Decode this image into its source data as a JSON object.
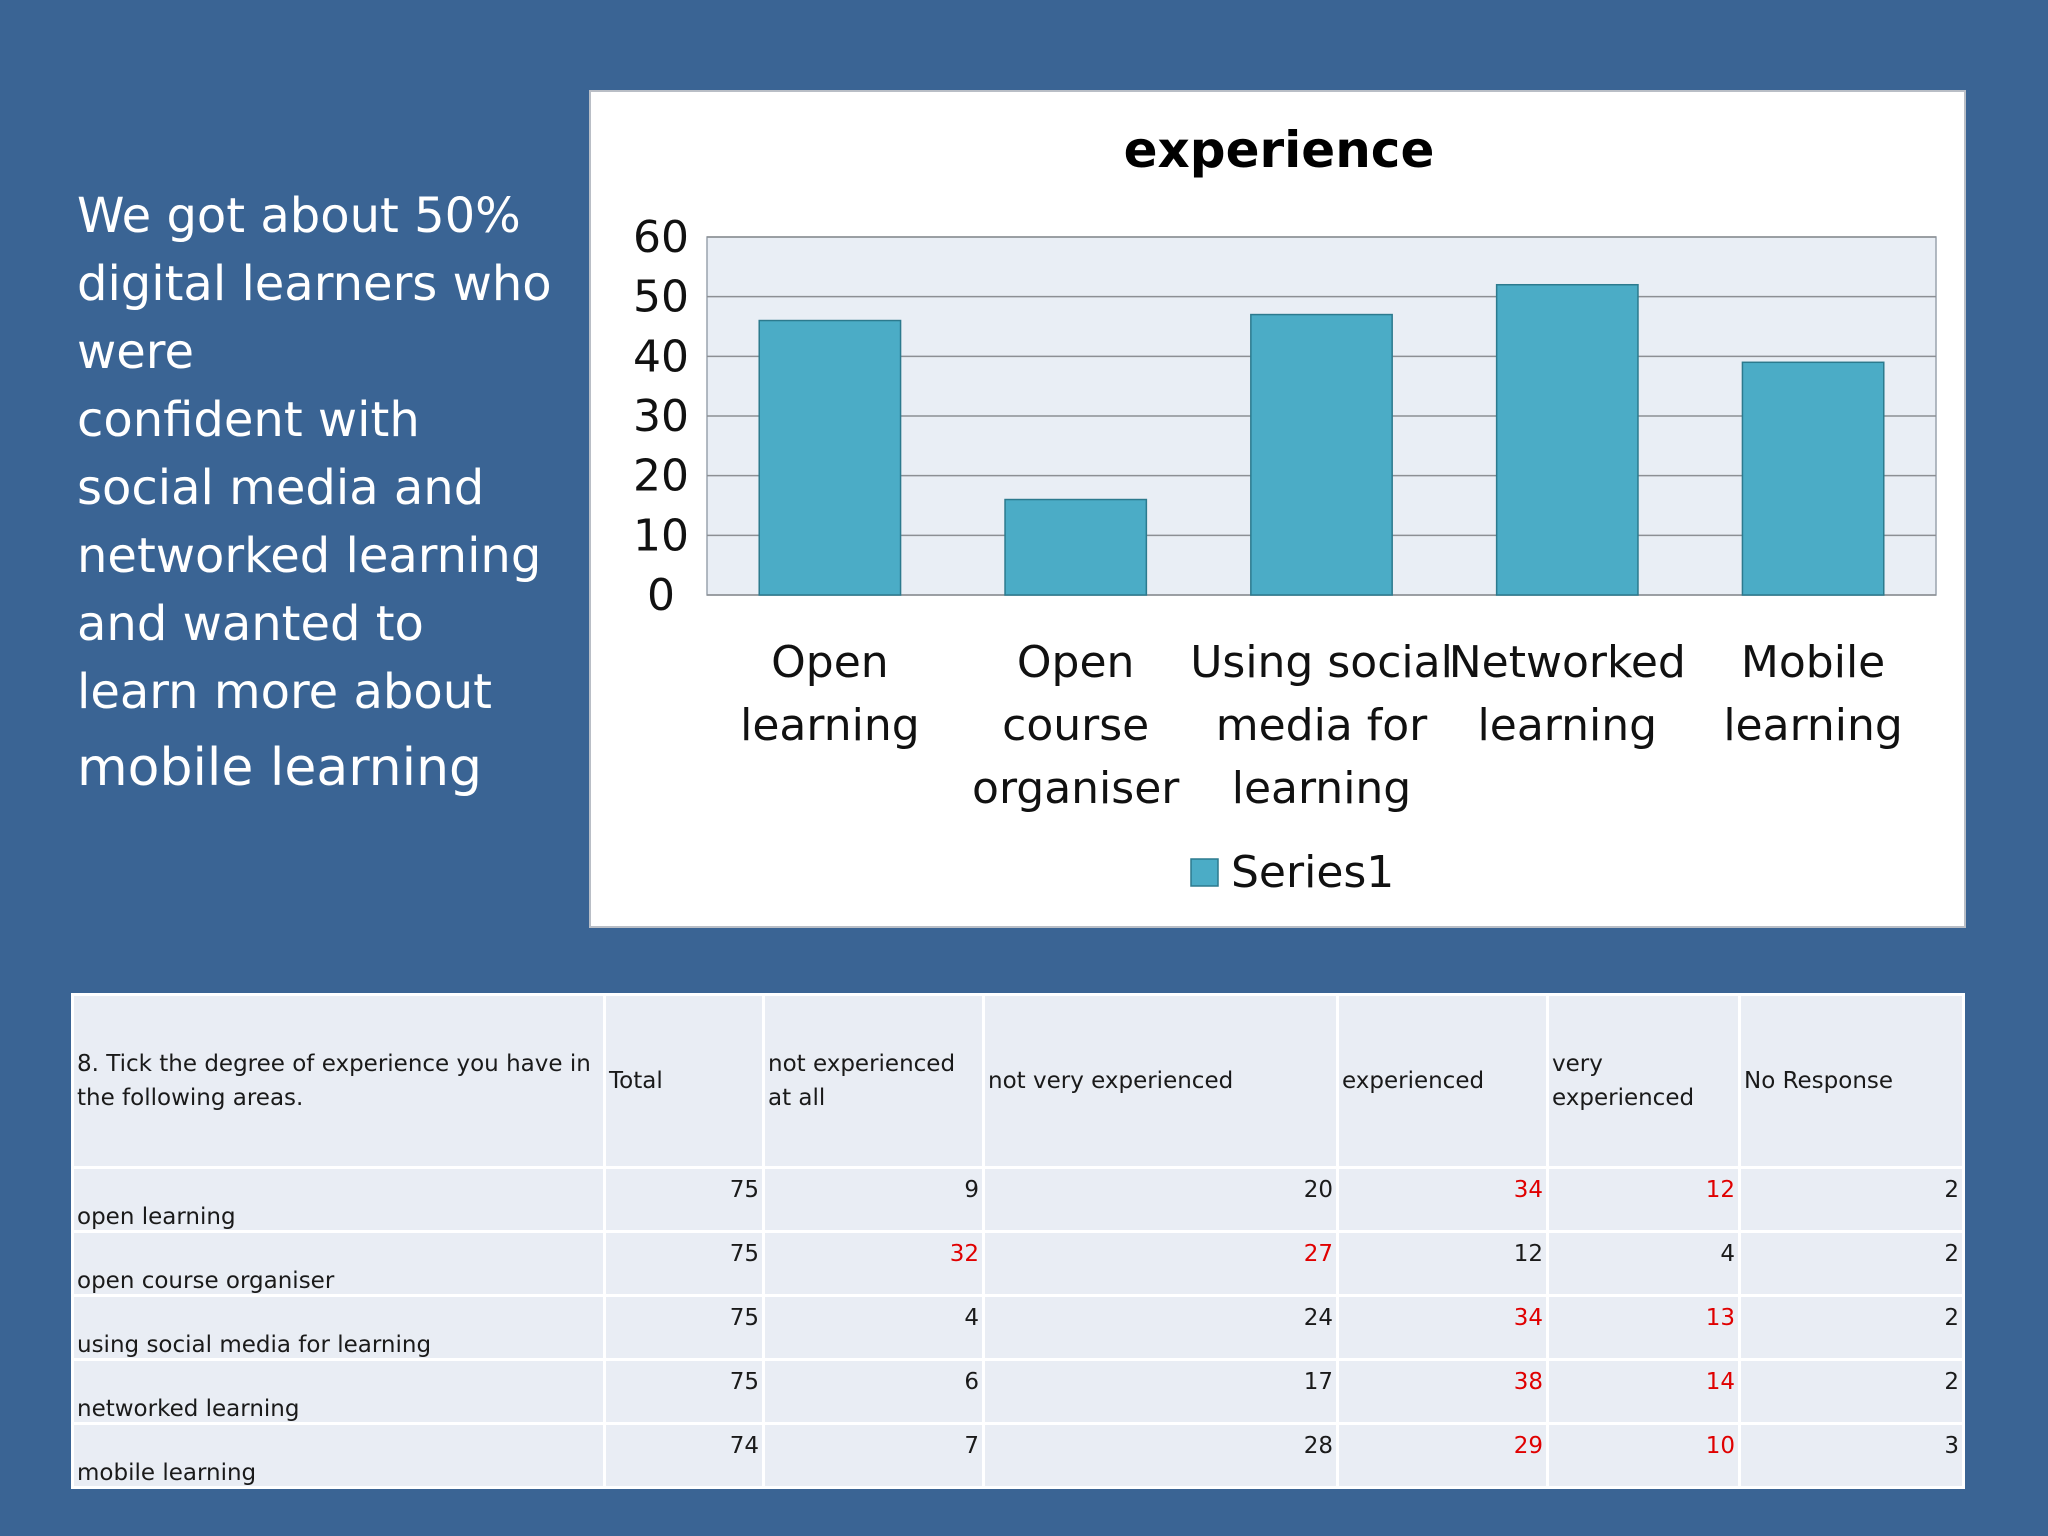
{
  "intro": {
    "lines": [
      "We got about 50%",
      "digital learners who",
      "were",
      "confident with",
      "social media and",
      "networked learning",
      "and wanted to",
      "learn more about",
      "mobile learning"
    ]
  },
  "colors": {
    "background": "#3a6494",
    "bar_fill": "#4bacc6",
    "bar_stroke": "#2c7a8e",
    "plot_bg": "#e9eef5",
    "highlight_text": "#e00000"
  },
  "chart_data": {
    "type": "bar",
    "title": "experience",
    "categories": [
      [
        "Open",
        "learning"
      ],
      [
        "Open",
        "course",
        "organiser"
      ],
      [
        "Using social",
        "media for",
        "learning"
      ],
      [
        "Networked",
        "learning"
      ],
      [
        "Mobile",
        "learning"
      ]
    ],
    "series": [
      {
        "name": "Series1",
        "values": [
          46,
          16,
          47,
          52,
          39
        ]
      }
    ],
    "ylim": [
      0,
      60
    ],
    "yticks": [
      "0",
      "10",
      "20",
      "30",
      "40",
      "50",
      "60"
    ],
    "grid": true,
    "legend": "bottom"
  },
  "table": {
    "headers": [
      "8. Tick the degree of experience you have in the following areas.",
      "Total",
      "not experienced at all",
      "not very experienced",
      "experienced",
      "very experienced",
      "No Response"
    ],
    "rows": [
      {
        "cells": [
          "open learning",
          "75",
          "9",
          "20",
          "34",
          "12",
          "2"
        ],
        "highlight": [
          false,
          false,
          false,
          false,
          true,
          true,
          false
        ]
      },
      {
        "cells": [
          "open course organiser",
          "75",
          "32",
          "27",
          "12",
          "4",
          "2"
        ],
        "highlight": [
          false,
          false,
          true,
          true,
          false,
          false,
          false
        ]
      },
      {
        "cells": [
          "using social media for learning",
          "75",
          "4",
          "24",
          "34",
          "13",
          "2"
        ],
        "highlight": [
          false,
          false,
          false,
          false,
          true,
          true,
          false
        ]
      },
      {
        "cells": [
          "networked learning",
          "75",
          "6",
          "17",
          "38",
          "14",
          "2"
        ],
        "highlight": [
          false,
          false,
          false,
          false,
          true,
          true,
          false
        ]
      },
      {
        "cells": [
          "mobile learning",
          "74",
          "7",
          "28",
          "29",
          "10",
          "3"
        ],
        "highlight": [
          false,
          false,
          false,
          false,
          true,
          true,
          false
        ]
      }
    ]
  }
}
